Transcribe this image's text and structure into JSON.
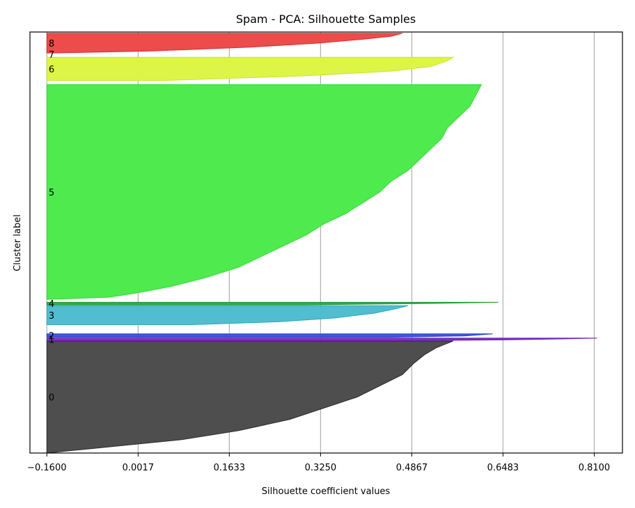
{
  "chart_data": {
    "type": "area",
    "title": "Spam - PCA: Silhouette Samples",
    "xlabel": "Silhouette coefficient values",
    "ylabel": "Cluster label",
    "xlim": [
      -0.19,
      0.86
    ],
    "ylim": [
      0,
      1000
    ],
    "grid": "vertical",
    "x_ticks": [
      -0.16,
      0.0017,
      0.1633,
      0.325,
      0.4867,
      0.6483,
      0.81
    ],
    "x_tick_labels": [
      "−0.1600",
      "0.0017",
      "0.1633",
      "0.3250",
      "0.4867",
      "0.6483",
      "0.8100"
    ],
    "clusters": [
      {
        "label": "0",
        "color": "#4a4a4a",
        "edge": "#2b2b2b",
        "y_range": [
          0,
          266
        ],
        "profile": [
          [
            0,
            -0.16
          ],
          [
            0.02,
            -0.12
          ],
          [
            0.05,
            -0.06
          ],
          [
            0.08,
            0.0
          ],
          [
            0.12,
            0.08
          ],
          [
            0.2,
            0.18
          ],
          [
            0.3,
            0.27
          ],
          [
            0.4,
            0.33
          ],
          [
            0.5,
            0.39
          ],
          [
            0.6,
            0.43
          ],
          [
            0.7,
            0.47
          ],
          [
            0.8,
            0.49
          ],
          [
            0.88,
            0.51
          ],
          [
            0.94,
            0.53
          ],
          [
            0.98,
            0.55
          ],
          [
            1.0,
            0.56
          ]
        ]
      },
      {
        "label": "1",
        "color": "#7b2fbe",
        "edge": "#6a1fb0",
        "y_range": [
          267,
          273
        ],
        "profile": [
          [
            0,
            0.5
          ],
          [
            0.3,
            0.65
          ],
          [
            0.7,
            0.76
          ],
          [
            1.0,
            0.815
          ]
        ]
      },
      {
        "label": "2",
        "color": "#3a55d8",
        "edge": "#2a44c8",
        "y_range": [
          275,
          283
        ],
        "profile": [
          [
            0,
            0.45
          ],
          [
            0.4,
            0.58
          ],
          [
            1.0,
            0.63
          ]
        ]
      },
      {
        "label": "3",
        "color": "#4ebccf",
        "edge": "#2aa8bd",
        "y_range": [
          305,
          350
        ],
        "profile": [
          [
            0,
            0.1
          ],
          [
            0.15,
            0.25
          ],
          [
            0.35,
            0.35
          ],
          [
            0.6,
            0.42
          ],
          [
            0.85,
            0.46
          ],
          [
            1.0,
            0.48
          ]
        ]
      },
      {
        "label": "4",
        "color": "#2ea845",
        "edge": "#1e9a35",
        "y_range": [
          352,
          358
        ],
        "profile": [
          [
            0,
            0.3
          ],
          [
            0.5,
            0.5
          ],
          [
            1.0,
            0.64
          ]
        ]
      },
      {
        "label": "5",
        "color": "#4aea4a",
        "edge": "#2ede2e",
        "y_range": [
          365,
          875
        ],
        "profile": [
          [
            0,
            -0.16
          ],
          [
            0.01,
            -0.05
          ],
          [
            0.03,
            0.0
          ],
          [
            0.06,
            0.06
          ],
          [
            0.1,
            0.12
          ],
          [
            0.15,
            0.18
          ],
          [
            0.2,
            0.22
          ],
          [
            0.25,
            0.26
          ],
          [
            0.3,
            0.3
          ],
          [
            0.35,
            0.33
          ],
          [
            0.4,
            0.37
          ],
          [
            0.45,
            0.4
          ],
          [
            0.5,
            0.43
          ],
          [
            0.55,
            0.45
          ],
          [
            0.6,
            0.48
          ],
          [
            0.65,
            0.5
          ],
          [
            0.7,
            0.52
          ],
          [
            0.75,
            0.54
          ],
          [
            0.8,
            0.55
          ],
          [
            0.85,
            0.57
          ],
          [
            0.9,
            0.59
          ],
          [
            0.95,
            0.6
          ],
          [
            1.0,
            0.61
          ]
        ]
      },
      {
        "label": "6",
        "color": "#dcf542",
        "edge": "#c8e62a",
        "y_range": [
          885,
          940
        ],
        "profile": [
          [
            0,
            0.05
          ],
          [
            0.2,
            0.3
          ],
          [
            0.4,
            0.45
          ],
          [
            0.6,
            0.52
          ],
          [
            0.85,
            0.55
          ],
          [
            1.0,
            0.56
          ]
        ]
      },
      {
        "label": "7",
        "color": "#f5bcbc",
        "edge": "#e8a0a0",
        "y_range": [
          946,
          948
        ],
        "profile": [
          [
            0,
            -0.16
          ],
          [
            1.0,
            -0.16
          ]
        ]
      },
      {
        "label": "8",
        "color": "#ec4848",
        "edge": "#dc2a2a",
        "y_range": [
          950,
          997
        ],
        "profile": [
          [
            0,
            -0.16
          ],
          [
            0.1,
            0.02
          ],
          [
            0.3,
            0.2
          ],
          [
            0.5,
            0.32
          ],
          [
            0.7,
            0.4
          ],
          [
            0.85,
            0.45
          ],
          [
            1.0,
            0.47
          ]
        ]
      }
    ]
  }
}
